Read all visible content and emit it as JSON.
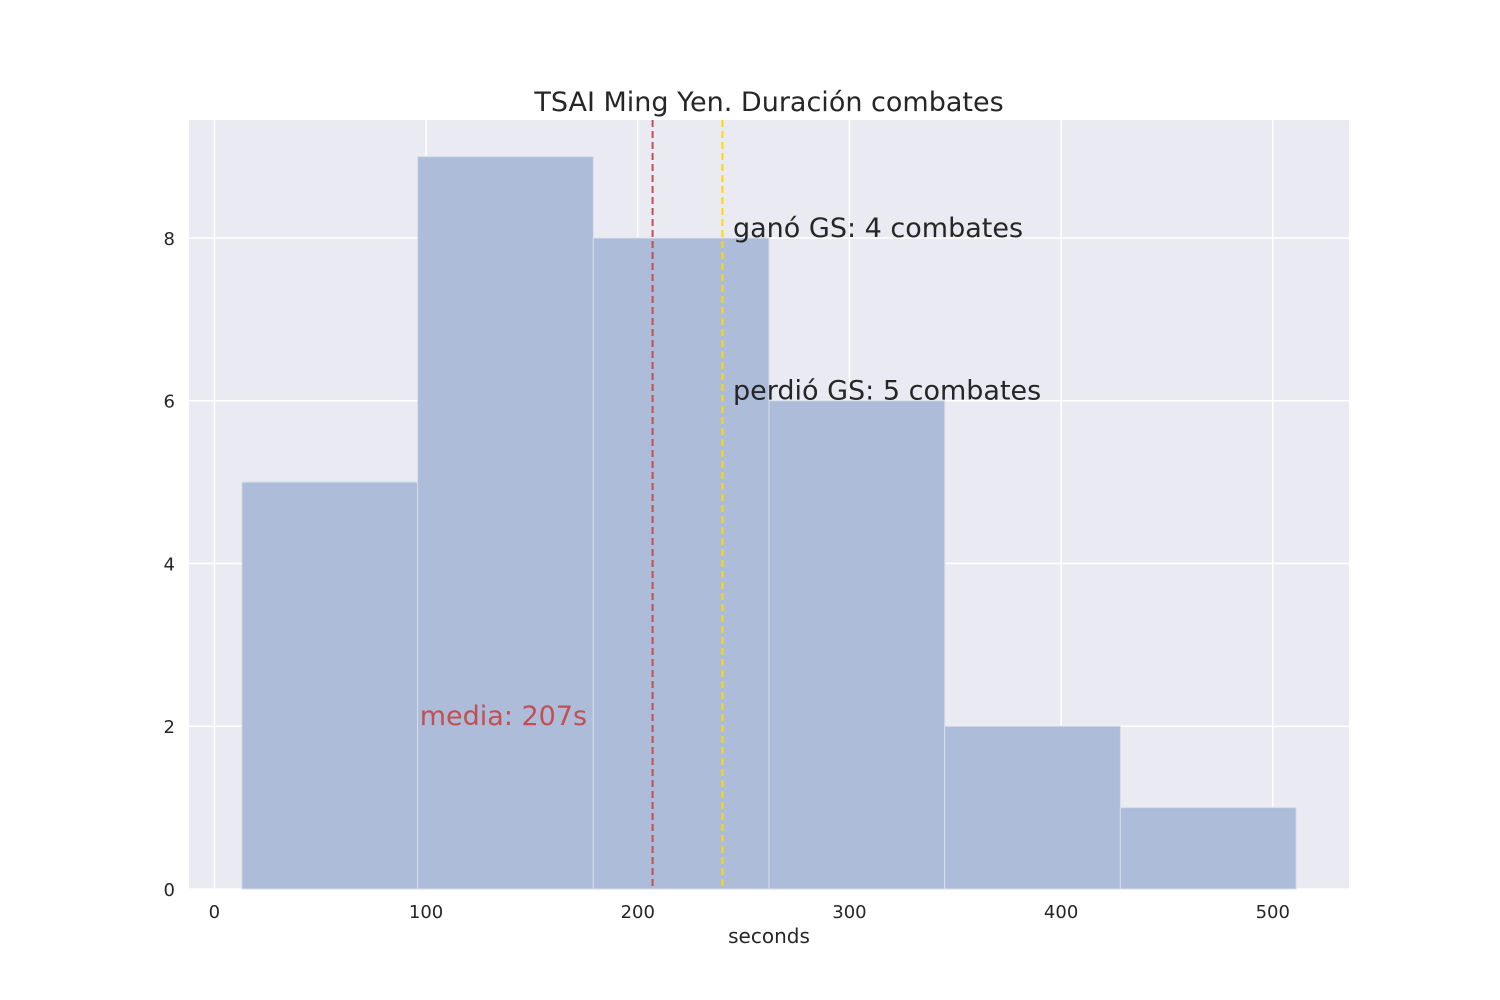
{
  "chart_data": {
    "type": "bar",
    "title": "TSAI Ming Yen. Duración combates",
    "xlabel": "seconds",
    "ylabel": "",
    "xlim": [
      -12,
      536
    ],
    "ylim": [
      0,
      9.45
    ],
    "xticks": [
      0,
      100,
      200,
      300,
      400,
      500
    ],
    "yticks": [
      0,
      2,
      4,
      6,
      8
    ],
    "grid": true,
    "bins": [
      {
        "start": 13,
        "end": 96,
        "count": 5
      },
      {
        "start": 96,
        "end": 179,
        "count": 9
      },
      {
        "start": 179,
        "end": 262,
        "count": 8
      },
      {
        "start": 262,
        "end": 345,
        "count": 6
      },
      {
        "start": 345,
        "end": 428,
        "count": 2
      },
      {
        "start": 428,
        "end": 511,
        "count": 1
      }
    ],
    "bar_color": "#a9b9d7",
    "background_color": "#eaeaf2",
    "vlines": [
      {
        "x": 207,
        "color": "#c44e52",
        "style": "dashed"
      },
      {
        "x": 240,
        "color": "#ffd700",
        "style": "dashed"
      }
    ],
    "annotations": [
      {
        "text": "ganó GS: 4 combates",
        "x": 245,
        "y": 8,
        "color": "#262626"
      },
      {
        "text": "perdió GS: 5 combates",
        "x": 245,
        "y": 6,
        "color": "#262626"
      },
      {
        "text": "media: 207s",
        "x": 97,
        "y": 2,
        "color": "#c44e52"
      }
    ]
  }
}
